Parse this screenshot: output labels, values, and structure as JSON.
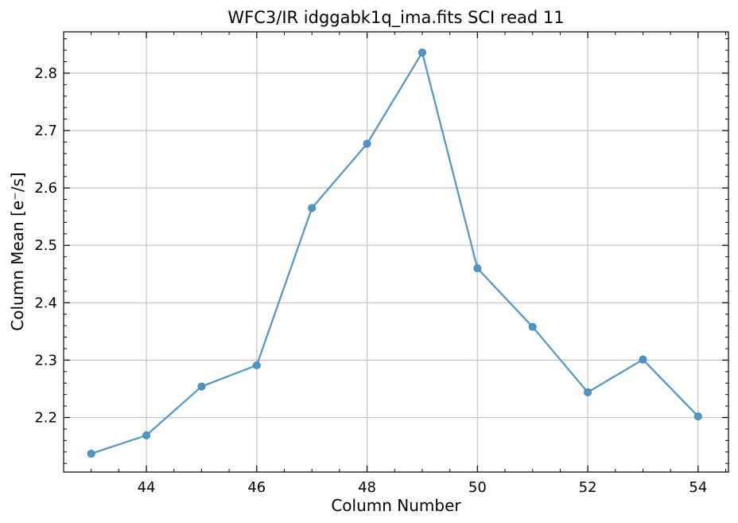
{
  "chart_data": {
    "type": "line",
    "title": "WFC3/IR idggabk1q_ima.fits SCI read 11",
    "xlabel": "Column Number",
    "ylabel": "Column Mean [e⁻/s]",
    "x": [
      43,
      44,
      45,
      46,
      47,
      48,
      49,
      50,
      51,
      52,
      53,
      54
    ],
    "series": [
      {
        "values": [
          2.137,
          2.169,
          2.254,
          2.291,
          2.565,
          2.677,
          2.836,
          2.46,
          2.358,
          2.244,
          2.301,
          2.202
        ],
        "color": "#4f95c5",
        "marker": "circle"
      }
    ],
    "xlim": [
      42.5,
      54.55
    ],
    "ylim": [
      2.105,
      2.872
    ],
    "xticks": [
      44,
      46,
      48,
      50,
      52,
      54
    ],
    "yticks": [
      2.2,
      2.3,
      2.4,
      2.5,
      2.6,
      2.7,
      2.8
    ],
    "xtick_labels": [
      "44",
      "46",
      "48",
      "50",
      "52",
      "54"
    ],
    "ytick_labels": [
      "2.2",
      "2.3",
      "2.4",
      "2.5",
      "2.6",
      "2.7",
      "2.8"
    ],
    "grid": true,
    "legend": "none"
  }
}
